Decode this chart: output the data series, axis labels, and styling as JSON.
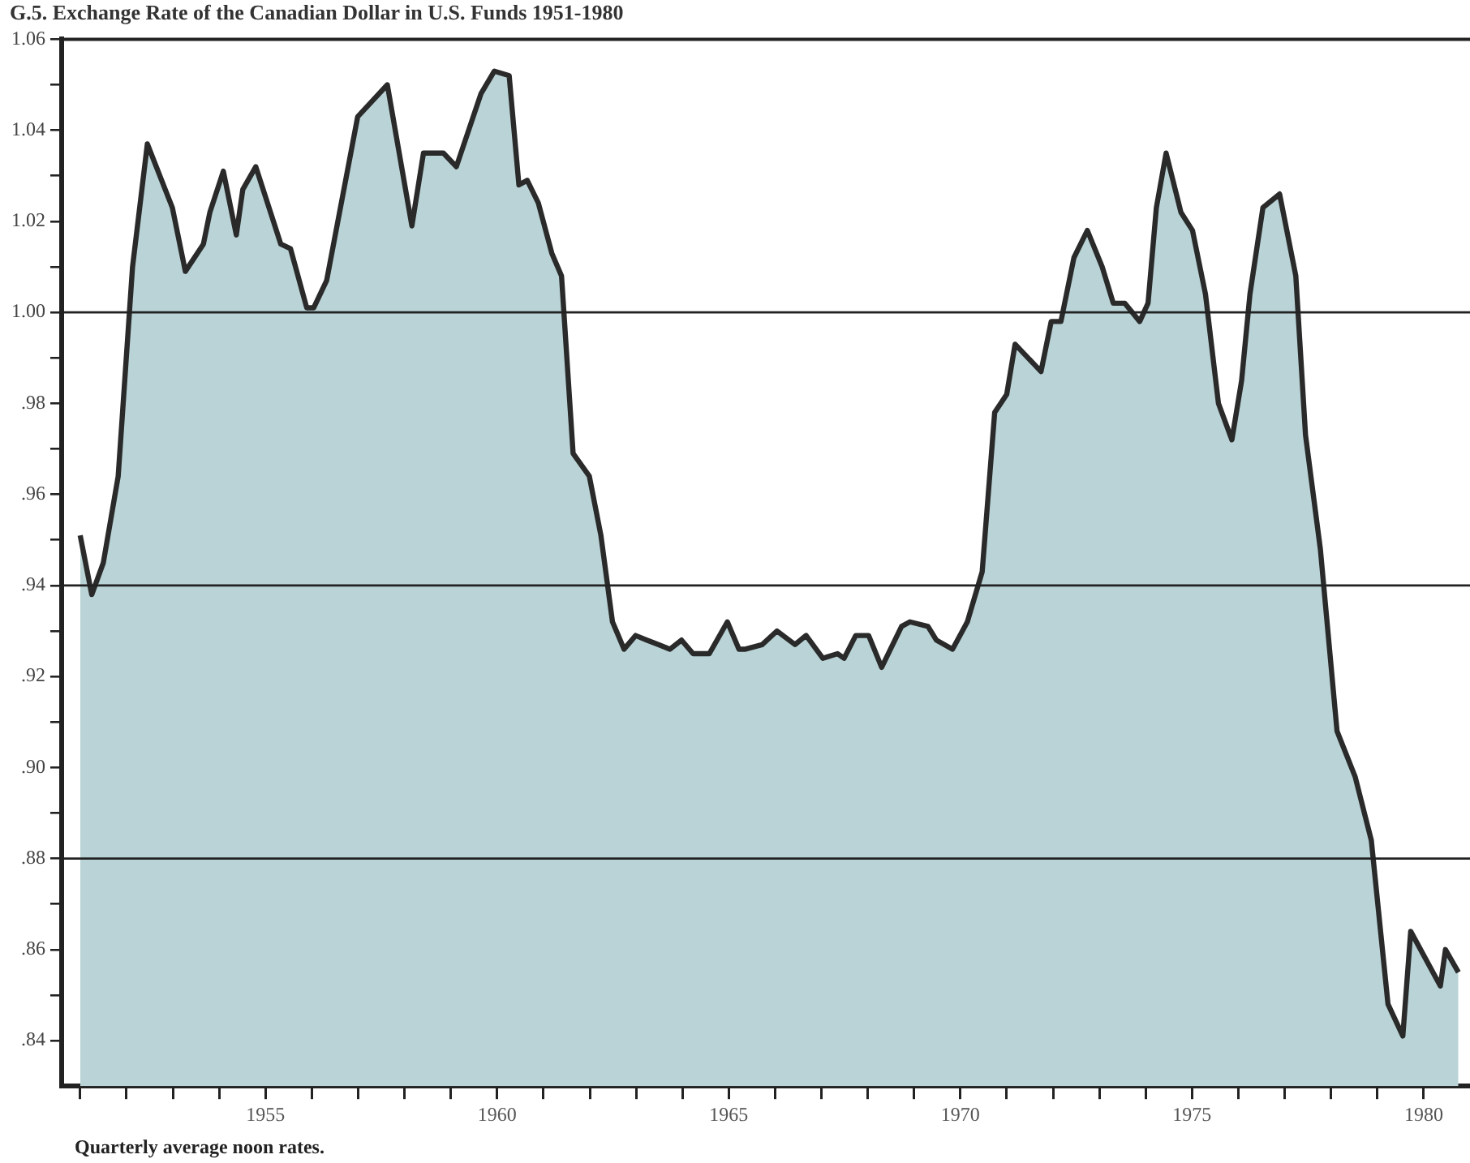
{
  "chart_data": {
    "type": "area",
    "title": "G.5.  Exchange Rate of the Canadian Dollar in U.S. Funds 1951-1980",
    "annotations": [
      "Quarterly average noon rates."
    ],
    "xlim": [
      1950.6,
      1981.0
    ],
    "xticks": [
      {
        "value": 1951,
        "label": null
      },
      {
        "value": 1952,
        "label": null
      },
      {
        "value": 1953,
        "label": null
      },
      {
        "value": 1954,
        "label": null
      },
      1955,
      {
        "value": 1956,
        "label": null
      },
      {
        "value": 1957,
        "label": null
      },
      {
        "value": 1958,
        "label": null
      },
      {
        "value": 1959,
        "label": null
      },
      1960,
      {
        "value": 1961,
        "label": null
      },
      {
        "value": 1962,
        "label": null
      },
      {
        "value": 1963,
        "label": null
      },
      {
        "value": 1964,
        "label": null
      },
      1965,
      {
        "value": 1966,
        "label": null
      },
      {
        "value": 1967,
        "label": null
      },
      {
        "value": 1968,
        "label": null
      },
      {
        "value": 1969,
        "label": null
      },
      1970,
      {
        "value": 1971,
        "label": null
      },
      {
        "value": 1972,
        "label": null
      },
      {
        "value": 1973,
        "label": null
      },
      {
        "value": 1974,
        "label": null
      },
      1975,
      {
        "value": 1976,
        "label": null
      },
      {
        "value": 1977,
        "label": null
      },
      {
        "value": 1978,
        "label": null
      },
      {
        "value": 1979,
        "label": null
      },
      1980
    ],
    "ylim": [
      0.83,
      1.06
    ],
    "yticks": [
      {
        "value": 0.84,
        "label": ".84"
      },
      {
        "value": 0.85,
        "label": null
      },
      {
        "value": 0.86,
        "label": ".86"
      },
      {
        "value": 0.87,
        "label": null
      },
      {
        "value": 0.88,
        "label": ".88"
      },
      {
        "value": 0.89,
        "label": null
      },
      {
        "value": 0.9,
        "label": ".90"
      },
      {
        "value": 0.91,
        "label": null
      },
      {
        "value": 0.92,
        "label": ".92"
      },
      {
        "value": 0.93,
        "label": null
      },
      {
        "value": 0.94,
        "label": ".94"
      },
      {
        "value": 0.95,
        "label": null
      },
      {
        "value": 0.96,
        "label": ".96"
      },
      {
        "value": 0.97,
        "label": null
      },
      {
        "value": 0.98,
        "label": ".98"
      },
      {
        "value": 0.99,
        "label": null
      },
      {
        "value": 1.0,
        "label": "1.00"
      },
      {
        "value": 1.01,
        "label": null
      },
      {
        "value": 1.02,
        "label": "1.02"
      },
      {
        "value": 1.03,
        "label": null
      },
      {
        "value": 1.04,
        "label": "1.04"
      },
      {
        "value": 1.05,
        "label": null
      },
      {
        "value": 1.06,
        "label": "1.06"
      }
    ],
    "ref_lines": [
      {
        "axis": "y",
        "value": 1.0,
        "color": "#222222"
      },
      {
        "axis": "y",
        "value": 0.94,
        "color": "#222222"
      },
      {
        "axis": "y",
        "value": 0.88,
        "color": "#222222"
      }
    ],
    "grid": false,
    "legend": false,
    "marker": "none",
    "line_style": "solid",
    "series": [
      {
        "color": "#b9d3d6",
        "x": [
          1951.0,
          1951.25,
          1951.5,
          1951.82,
          1952.13,
          1952.45,
          1952.99,
          1953.27,
          1953.66,
          1953.8,
          1954.09,
          1954.37,
          1954.51,
          1954.79,
          1955.33,
          1955.54,
          1955.89,
          1956.04,
          1956.32,
          1956.99,
          1957.63,
          1958.16,
          1958.41,
          1958.84,
          1959.12,
          1959.65,
          1959.94,
          1960.26,
          1960.47,
          1960.65,
          1960.89,
          1961.18,
          1961.39,
          1961.64,
          1961.99,
          1962.24,
          1962.49,
          1962.74,
          1962.99,
          1963.23,
          1963.48,
          1963.73,
          1963.98,
          1964.23,
          1964.58,
          1964.97,
          1965.22,
          1965.36,
          1965.72,
          1966.04,
          1966.43,
          1966.67,
          1967.03,
          1967.35,
          1967.49,
          1967.74,
          1968.02,
          1968.3,
          1968.73,
          1968.91,
          1969.3,
          1969.48,
          1969.83,
          1970.15,
          1970.47,
          1970.74,
          1971.0,
          1971.18,
          1971.74,
          1971.96,
          1972.17,
          1972.45,
          1972.74,
          1973.06,
          1973.3,
          1973.55,
          1973.87,
          1974.05,
          1974.23,
          1974.44,
          1974.76,
          1975.01,
          1975.29,
          1975.57,
          1975.86,
          1976.07,
          1976.25,
          1976.53,
          1976.89,
          1977.24,
          1977.45,
          1977.77,
          1978.13,
          1978.52,
          1978.87,
          1979.23,
          1979.55,
          1979.72,
          1980.36,
          1980.47,
          1980.75
        ],
        "values": [
          0.951,
          0.938,
          0.945,
          0.964,
          1.01,
          1.037,
          1.023,
          1.009,
          1.015,
          1.022,
          1.031,
          1.017,
          1.027,
          1.032,
          1.015,
          1.014,
          1.001,
          1.001,
          1.007,
          1.043,
          1.05,
          1.019,
          1.035,
          1.035,
          1.032,
          1.048,
          1.053,
          1.052,
          1.028,
          1.029,
          1.024,
          1.013,
          1.008,
          0.969,
          0.964,
          0.951,
          0.932,
          0.926,
          0.929,
          0.928,
          0.927,
          0.926,
          0.928,
          0.925,
          0.925,
          0.932,
          0.926,
          0.926,
          0.927,
          0.93,
          0.927,
          0.929,
          0.924,
          0.925,
          0.924,
          0.929,
          0.929,
          0.922,
          0.931,
          0.932,
          0.931,
          0.928,
          0.926,
          0.932,
          0.943,
          0.978,
          0.982,
          0.993,
          0.987,
          0.998,
          0.998,
          1.012,
          1.018,
          1.01,
          1.002,
          1.002,
          0.998,
          1.002,
          1.023,
          1.035,
          1.022,
          1.018,
          1.004,
          0.98,
          0.972,
          0.985,
          1.004,
          1.023,
          1.026,
          1.008,
          0.973,
          0.948,
          0.908,
          0.898,
          0.884,
          0.848,
          0.841,
          0.864,
          0.852,
          0.86,
          0.855
        ]
      }
    ]
  }
}
